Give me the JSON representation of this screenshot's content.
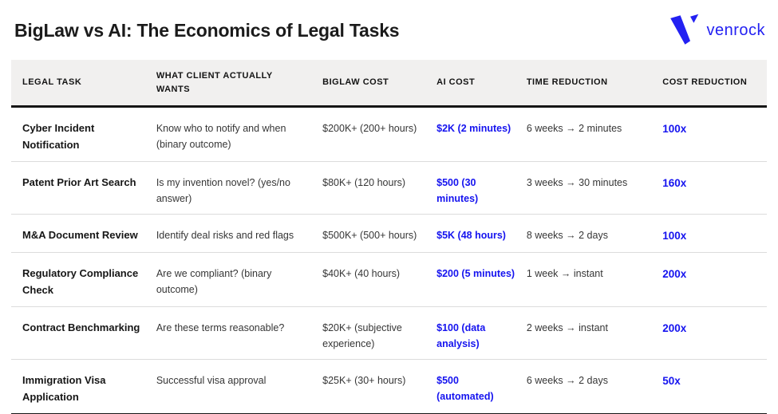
{
  "page": {
    "title": "BigLaw vs AI: The Economics of Legal Tasks",
    "logo": {
      "text": "venrock",
      "icon": "venrock-v-mark"
    }
  },
  "colors": {
    "accent_blue": "#1513ef",
    "logo_blue": "#2321f2",
    "header_bg": "#f1f0ef",
    "rule_dark": "#161616",
    "rule_light": "#dcdcdc"
  },
  "chart_data": {
    "type": "table",
    "title": "BigLaw vs AI: The Economics of Legal Tasks",
    "columns": [
      {
        "key": "task",
        "label": "LEGAL TASK"
      },
      {
        "key": "client_wants",
        "label": "WHAT CLIENT ACTUALLY WANTS"
      },
      {
        "key": "biglaw_cost",
        "label": "BIGLAW COST"
      },
      {
        "key": "ai_cost",
        "label": "AI COST"
      },
      {
        "key": "time_reduction",
        "label": "TIME REDUCTION"
      },
      {
        "key": "cost_reduction",
        "label": "COST REDUCTION"
      }
    ],
    "rows": [
      {
        "task": "Cyber Incident Notification",
        "client_wants": "Know who to notify and when (binary outcome)",
        "biglaw_cost": "$200K+ (200+ hours)",
        "ai_cost": "$2K (2 minutes)",
        "time_reduction": "6 weeks → 2 minutes",
        "cost_reduction": "100x"
      },
      {
        "task": "Patent Prior Art Search",
        "client_wants": "Is my invention novel? (yes/no answer)",
        "biglaw_cost": "$80K+ (120 hours)",
        "ai_cost": "$500 (30 minutes)",
        "time_reduction": "3 weeks → 30 minutes",
        "cost_reduction": "160x"
      },
      {
        "task": "M&A Document Review",
        "client_wants": "Identify deal risks and red flags",
        "biglaw_cost": "$500K+ (500+ hours)",
        "ai_cost": "$5K (48 hours)",
        "time_reduction": "8 weeks → 2 days",
        "cost_reduction": "100x"
      },
      {
        "task": "Regulatory Compliance Check",
        "client_wants": "Are we compliant? (binary outcome)",
        "biglaw_cost": "$40K+ (40 hours)",
        "ai_cost": "$200 (5 minutes)",
        "time_reduction": "1 week → instant",
        "cost_reduction": "200x"
      },
      {
        "task": "Contract Benchmarking",
        "client_wants": "Are these terms reasonable?",
        "biglaw_cost": "$20K+ (subjective experience)",
        "ai_cost": "$100 (data analysis)",
        "time_reduction": "2 weeks → instant",
        "cost_reduction": "200x"
      },
      {
        "task": "Immigration Visa Application",
        "client_wants": "Successful visa approval",
        "biglaw_cost": "$25K+ (30+ hours)",
        "ai_cost": "$500 (automated)",
        "time_reduction": "6 weeks → 2 days",
        "cost_reduction": "50x"
      }
    ]
  }
}
